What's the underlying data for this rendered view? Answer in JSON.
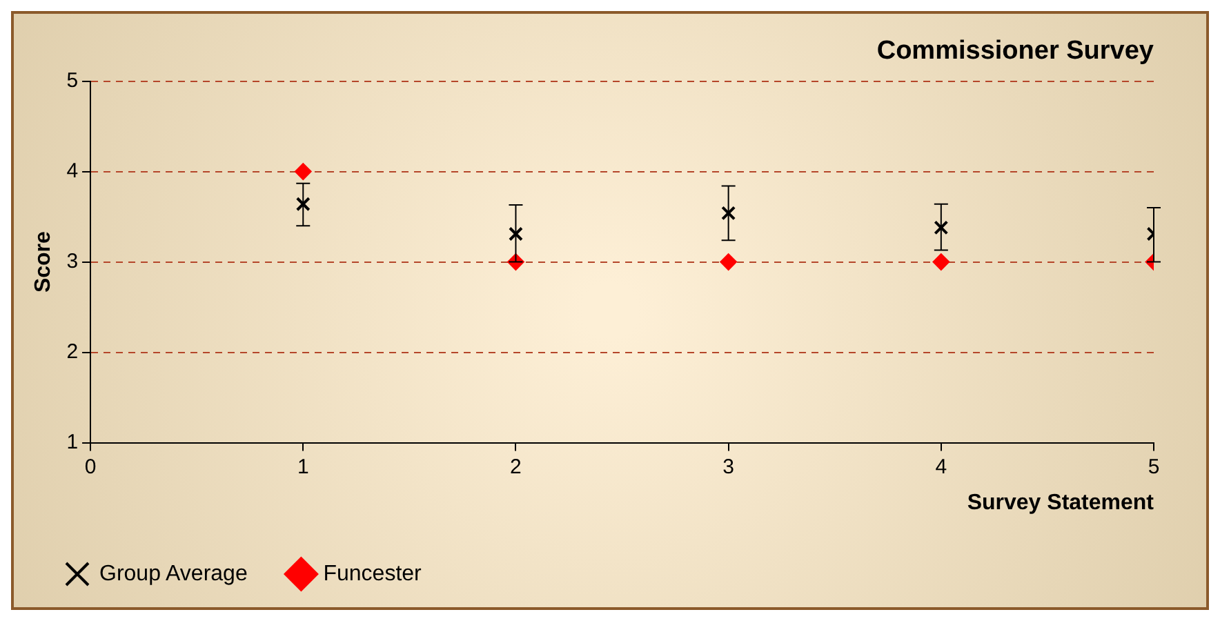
{
  "chart_data": {
    "type": "scatter",
    "title": "Commissioner Survey",
    "xlabel": "Survey Statement",
    "ylabel": "Score",
    "xlim": [
      0,
      5
    ],
    "xticks": [
      0,
      1,
      2,
      3,
      4,
      5
    ],
    "ylim": [
      1,
      5
    ],
    "yticks": [
      1,
      2,
      3,
      4,
      5
    ],
    "grid": "y",
    "line_style": "dashed",
    "legend": "bottom",
    "x": [
      1,
      2,
      3,
      4,
      5
    ],
    "series": [
      {
        "name": "Group Average",
        "color": "#000000",
        "marker": "cross",
        "values": [
          3.64,
          3.31,
          3.54,
          3.38,
          3.31
        ],
        "errors": [
          [
            3.4,
            3.87
          ],
          [
            3.0,
            3.63
          ],
          [
            3.24,
            3.84
          ],
          [
            3.13,
            3.64
          ],
          [
            3.0,
            3.6
          ]
        ]
      },
      {
        "name": "Funcester",
        "color": "#ff0000",
        "marker": "diamond",
        "values": [
          4,
          3,
          3,
          3,
          3
        ]
      }
    ]
  }
}
